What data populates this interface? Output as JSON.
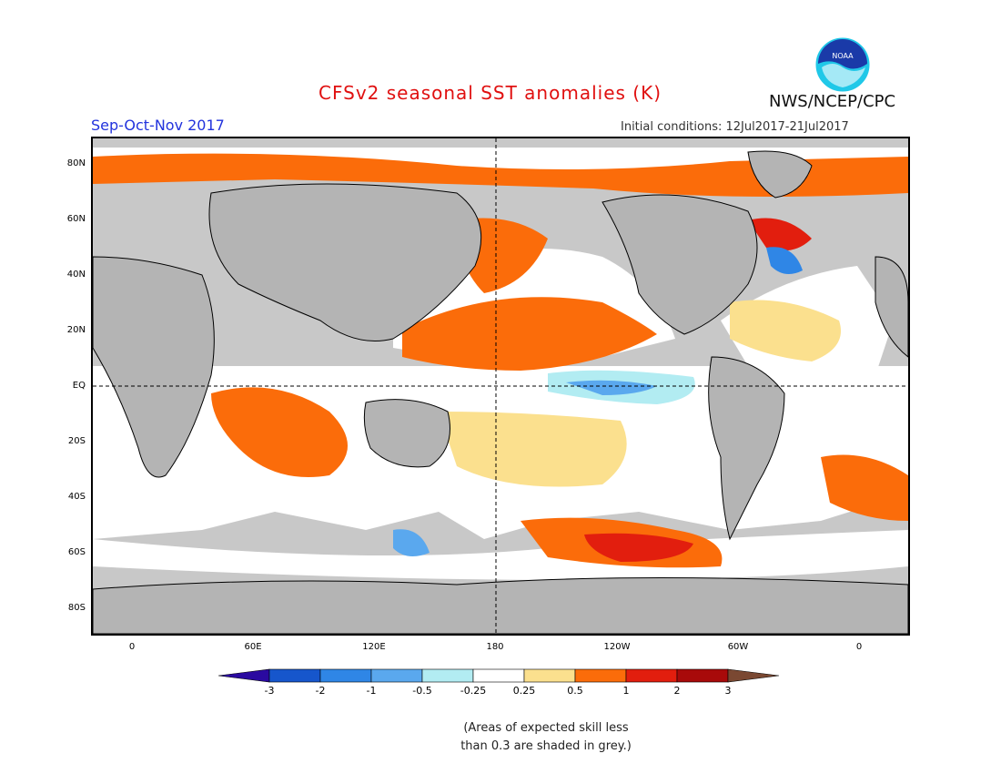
{
  "title": "CFSv2 seasonal SST anomalies (K)",
  "season": "Sep-Oct-Nov 2017",
  "initial_conditions": "Initial conditions: 12Jul2017-21Jul2017",
  "agency": "NWS/NCEP/CPC",
  "logo_text": "NOAA",
  "lat_labels": [
    "80N",
    "60N",
    "40N",
    "20N",
    "EQ",
    "20S",
    "40S",
    "60S",
    "80S"
  ],
  "lon_labels": [
    "0",
    "60E",
    "120E",
    "180",
    "120W",
    "60W",
    "0"
  ],
  "colorbar": {
    "ticks": [
      "-3",
      "-2",
      "-1",
      "-0.5",
      "-0.25",
      "0.25",
      "0.5",
      "1",
      "2",
      "3"
    ],
    "colors": [
      "#2a0aa0",
      "#1656cc",
      "#2f86e6",
      "#5aa8ee",
      "#b2ecf2",
      "#ffffff",
      "#fbe08e",
      "#fb6c0a",
      "#e21e0e",
      "#a80a0a",
      "#7a4832"
    ]
  },
  "note": "(Areas of expected skill less\nthan 0.3 are shaded in grey.)",
  "colors": {
    "land": "#b4b4b4",
    "low_skill": "#c8c8c8",
    "neutral": "#ffffff"
  }
}
